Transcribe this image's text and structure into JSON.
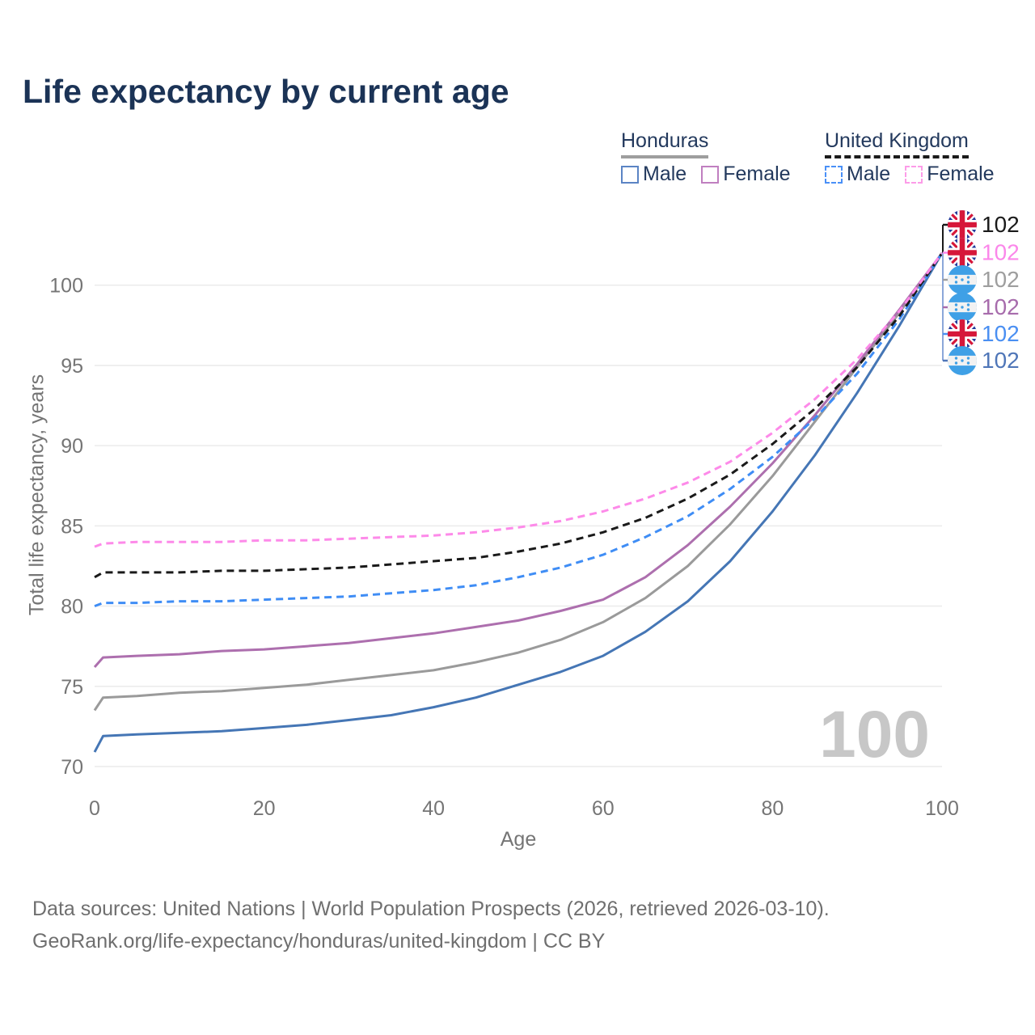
{
  "header": {
    "title": "Life expectancy by current age"
  },
  "legend": {
    "groups": [
      {
        "id": "honduras",
        "label": "Honduras",
        "line_style": "solid",
        "line_color": "#9e9e9e",
        "items": [
          {
            "id": "hn_male",
            "label": "Male",
            "box_color": "#5b84c4",
            "box_style": "solid"
          },
          {
            "id": "hn_female",
            "label": "Female",
            "box_color": "#c07fc0",
            "box_style": "solid"
          }
        ]
      },
      {
        "id": "uk",
        "label": "United Kingdom",
        "line_style": "dashed",
        "line_color": "#1a1a1a",
        "items": [
          {
            "id": "uk_male",
            "label": "Male",
            "box_color": "#4a90f7",
            "box_style": "dashed"
          },
          {
            "id": "uk_female",
            "label": "Female",
            "box_color": "#fc9ce8",
            "box_style": "dashed"
          }
        ]
      }
    ]
  },
  "chart_data": {
    "type": "line",
    "title": "Life expectancy by current age",
    "xlabel": "Age",
    "ylabel": "Total life expectancy, years",
    "xlim": [
      0,
      100
    ],
    "ylim": [
      70,
      102.5
    ],
    "x_ticks": [
      0,
      20,
      40,
      60,
      80,
      100
    ],
    "y_ticks": [
      70,
      75,
      80,
      85,
      90,
      95,
      100
    ],
    "grid": "horizontal",
    "legend_position": "top-right",
    "age_indicator": "100",
    "x": [
      0,
      1,
      5,
      10,
      15,
      20,
      25,
      30,
      35,
      40,
      45,
      50,
      55,
      60,
      65,
      70,
      75,
      80,
      85,
      90,
      95,
      100
    ],
    "series": [
      {
        "id": "hn_male",
        "name": "Honduras Male",
        "color": "#4576b5",
        "dash": "solid",
        "values": [
          70.9,
          71.9,
          72.0,
          72.1,
          72.2,
          72.4,
          72.6,
          72.9,
          73.2,
          73.7,
          74.3,
          75.1,
          75.9,
          76.9,
          78.4,
          80.3,
          82.8,
          85.9,
          89.4,
          93.3,
          97.5,
          102
        ]
      },
      {
        "id": "hn_total",
        "name": "Honduras Both sexes",
        "color": "#9a9a9a",
        "dash": "solid",
        "values": [
          73.5,
          74.3,
          74.4,
          74.6,
          74.7,
          74.9,
          75.1,
          75.4,
          75.7,
          76.0,
          76.5,
          77.1,
          77.9,
          79.0,
          80.5,
          82.5,
          85.1,
          88.1,
          91.5,
          94.9,
          98.3,
          102
        ]
      },
      {
        "id": "hn_female",
        "name": "Honduras Female",
        "color": "#ad6fae",
        "dash": "solid",
        "values": [
          76.2,
          76.8,
          76.9,
          77.0,
          77.2,
          77.3,
          77.5,
          77.7,
          78.0,
          78.3,
          78.7,
          79.1,
          79.7,
          80.4,
          81.8,
          83.8,
          86.2,
          88.9,
          91.9,
          95.1,
          98.5,
          102
        ]
      },
      {
        "id": "uk_male",
        "name": "United Kingdom Male",
        "color": "#3f8df5",
        "dash": "dashed",
        "values": [
          80.0,
          80.2,
          80.2,
          80.3,
          80.3,
          80.4,
          80.5,
          80.6,
          80.8,
          81.0,
          81.3,
          81.8,
          82.4,
          83.2,
          84.3,
          85.6,
          87.3,
          89.3,
          91.7,
          94.5,
          97.9,
          102
        ]
      },
      {
        "id": "uk_total",
        "name": "United Kingdom Both sexes",
        "color": "#1a1a1a",
        "dash": "dashed",
        "values": [
          81.8,
          82.1,
          82.1,
          82.1,
          82.2,
          82.2,
          82.3,
          82.4,
          82.6,
          82.8,
          83.0,
          83.4,
          83.9,
          84.6,
          85.5,
          86.7,
          88.2,
          90.1,
          92.3,
          94.9,
          98.1,
          102
        ]
      },
      {
        "id": "uk_female",
        "name": "United Kingdom Female",
        "color": "#fd8ae9",
        "dash": "dashed",
        "values": [
          83.7,
          83.9,
          84.0,
          84.0,
          84.0,
          84.1,
          84.1,
          84.2,
          84.3,
          84.4,
          84.6,
          84.9,
          85.3,
          85.9,
          86.7,
          87.7,
          89.0,
          90.8,
          92.9,
          95.4,
          98.4,
          102
        ]
      }
    ],
    "end_labels": [
      {
        "series": "uk_total",
        "flag": "uk",
        "value": "102",
        "color": "#1a1a1a"
      },
      {
        "series": "uk_female",
        "flag": "uk",
        "value": "102",
        "color": "#fb87ea"
      },
      {
        "series": "hn_total",
        "flag": "hn",
        "value": "102",
        "color": "#9e9e9e"
      },
      {
        "series": "hn_female",
        "flag": "hn",
        "value": "102",
        "color": "#a76cac"
      },
      {
        "series": "uk_male",
        "flag": "uk",
        "value": "102",
        "color": "#4a8ff2"
      },
      {
        "series": "hn_male",
        "flag": "hn",
        "value": "102",
        "color": "#4f76b8"
      }
    ]
  },
  "footer": {
    "line1": "Data sources: United Nations | World Population Prospects (2026, retrieved 2026-03-10).",
    "line2": "GeoRank.org/life-expectancy/honduras/united-kingdom | CC BY"
  }
}
